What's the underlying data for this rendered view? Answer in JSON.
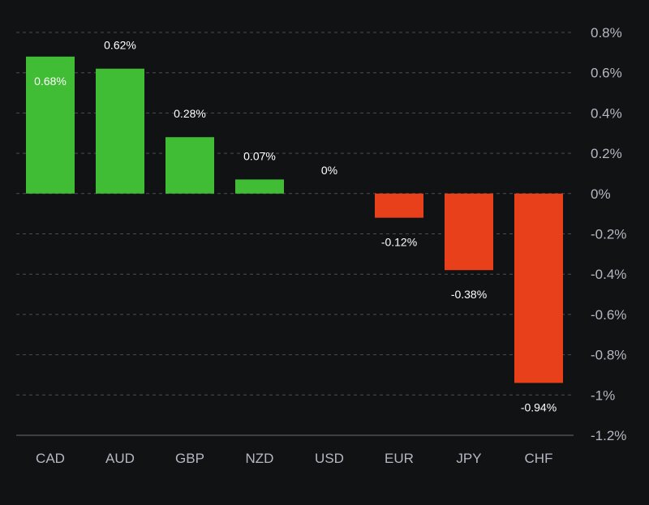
{
  "colors": {
    "background": "#111214",
    "positive": "#41bd35",
    "negative": "#e8401b",
    "grid": "#4a4c52",
    "axis_text": "#b4b8c2",
    "value_text": "#ffffff"
  },
  "chart_data": {
    "type": "bar",
    "title": "",
    "xlabel": "",
    "ylabel": "",
    "categories": [
      "CAD",
      "AUD",
      "GBP",
      "NZD",
      "USD",
      "EUR",
      "JPY",
      "CHF"
    ],
    "values": [
      0.68,
      0.62,
      0.28,
      0.07,
      0,
      -0.12,
      -0.38,
      -0.94
    ],
    "value_labels": [
      "0.68%",
      "0.62%",
      "0.28%",
      "0.07%",
      "0%",
      "-0.12%",
      "-0.38%",
      "-0.94%"
    ],
    "ylim": [
      -1.2,
      0.8
    ],
    "yticks": [
      0.8,
      0.6,
      0.4,
      0.2,
      0,
      -0.2,
      -0.4,
      -0.6,
      -0.8,
      -1,
      -1.2
    ],
    "ytick_labels": [
      "0.8%",
      "0.6%",
      "0.4%",
      "0.2%",
      "0%",
      "-0.2%",
      "-0.4%",
      "-0.6%",
      "-0.8%",
      "-1%",
      "-1.2%"
    ],
    "y_axis_position": "right",
    "grid": true,
    "legend": "none"
  }
}
